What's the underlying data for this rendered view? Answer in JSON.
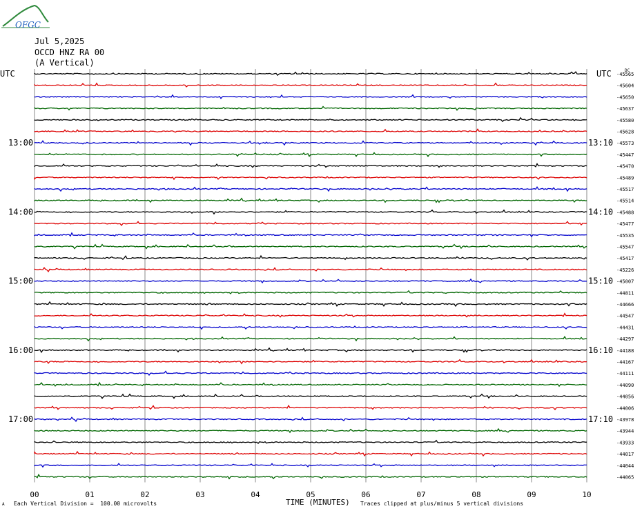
{
  "header": {
    "logo_text": "OFGC",
    "date": "Jul 5,2025",
    "station": "OCCD HNZ RA 00",
    "component": "(A Vertical)",
    "utc_left": "UTC",
    "utc_right": "UTC"
  },
  "footer": {
    "xlabel": "TIME (MINUTES)",
    "scale_note": "Each Vertical Division =  100.00 microvolts",
    "clip_note": "Traces clipped at plus/minus 5 vertical divisions",
    "corner_mark": "A"
  },
  "colors": {
    "black": "#000000",
    "red": "#dd0000",
    "blue": "#0000cc",
    "green": "#006600",
    "grid": "#888888"
  },
  "chart_data": {
    "type": "line",
    "xlim": [
      0,
      10
    ],
    "x_ticks": [
      "00",
      "01",
      "02",
      "03",
      "04",
      "05",
      "06",
      "07",
      "08",
      "09",
      "10"
    ],
    "left_time_labels": [
      "13:00",
      "14:00",
      "15:00",
      "16:00",
      "17:00"
    ],
    "right_time_labels": [
      "13:10",
      "14:10",
      "15:10",
      "16:10",
      "17:10"
    ],
    "time_label_rows": [
      6,
      12,
      18,
      24,
      30
    ],
    "color_cycle": [
      "black",
      "red",
      "blue",
      "green"
    ],
    "trace_offsets": [
      "-45565",
      "-45604",
      "-45650",
      "-45637",
      "-45580",
      "-45628",
      "-45573",
      "-45447",
      "-45470",
      "-45489",
      "-45517",
      "-45514",
      "-45488",
      "-45477",
      "-45535",
      "-45547",
      "-45417",
      "-45226",
      "-45007",
      "-44811",
      "-44666",
      "-44547",
      "-44431",
      "-44297",
      "-44188",
      "-44167",
      "-44111",
      "-44090",
      "-44056",
      "-44006",
      "-43978",
      "-43944",
      "-43933",
      "-44017",
      "-44044",
      "-44065"
    ],
    "top_right_mark": "DC"
  }
}
